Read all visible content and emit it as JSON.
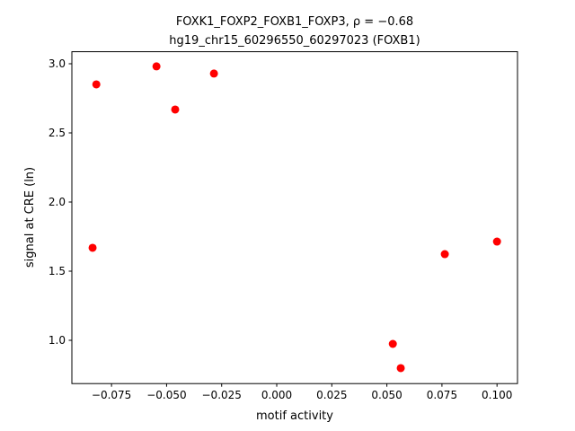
{
  "chart_data": {
    "type": "scatter",
    "title": "FOXK1_FOXP2_FOXB1_FOXP3, ρ = −0.68",
    "subtitle": "hg19_chr15_60296550_60297023 (FOXB1)",
    "x_label": "motif activity",
    "y_label": "signal at CRE (ln)",
    "color": "#ff0000",
    "x": [
      -0.0836,
      -0.0819,
      -0.0546,
      -0.0461,
      -0.0285,
      0.0527,
      0.0563,
      0.0763,
      0.1
    ],
    "values": [
      1.669,
      2.851,
      2.981,
      2.669,
      2.929,
      0.974,
      0.799,
      1.623,
      1.714
    ],
    "xlim": [
      -0.093,
      0.1093
    ],
    "ylim": [
      0.687,
      3.087
    ],
    "xticks": [
      {
        "value": -0.075,
        "label": "−0.075"
      },
      {
        "value": -0.05,
        "label": "−0.050"
      },
      {
        "value": -0.025,
        "label": "−0.025"
      },
      {
        "value": 0,
        "label": "0.000"
      },
      0.025,
      {
        "value": 0.05,
        "label": "0.050"
      },
      0.075,
      {
        "value": 0.1,
        "label": "0.100"
      }
    ],
    "yticks": [
      {
        "value": 1,
        "label": "1.0"
      },
      1.5,
      {
        "value": 2,
        "label": "2.0"
      },
      2.5,
      {
        "value": 3,
        "label": "3.0"
      }
    ],
    "grid": false
  }
}
